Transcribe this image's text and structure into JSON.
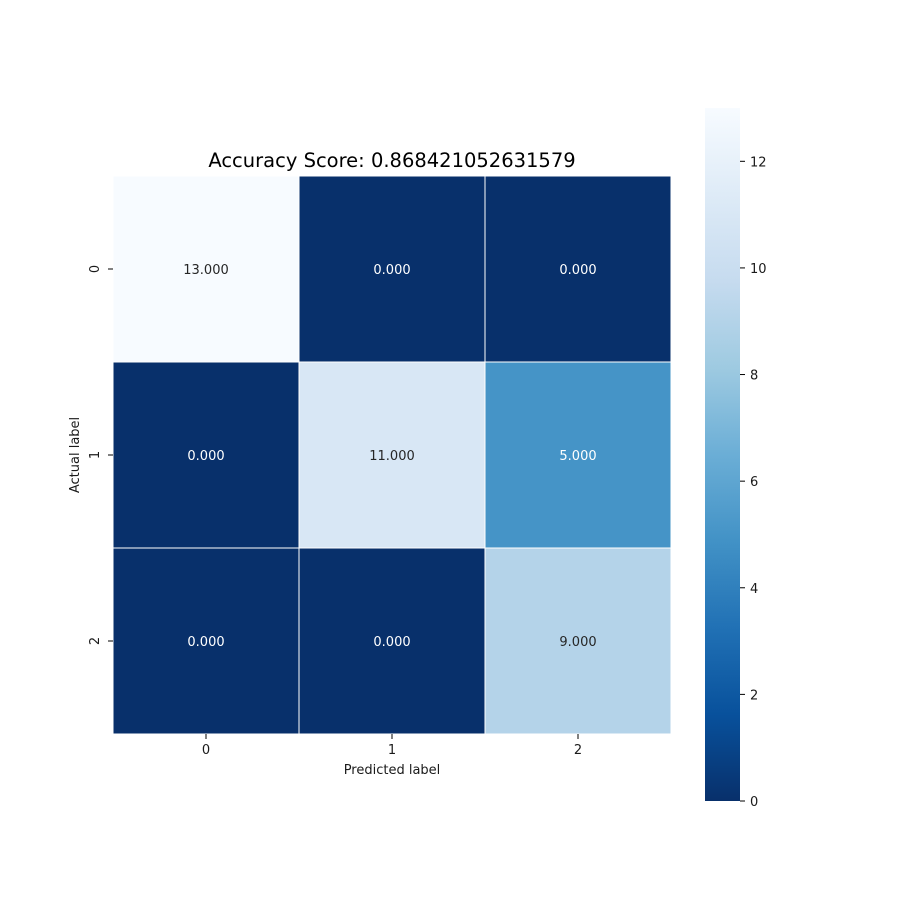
{
  "chart_data": {
    "type": "heatmap",
    "title": "Accuracy Score: 0.868421052631579",
    "xlabel": "Predicted label",
    "ylabel": "Actual label",
    "x_categories": [
      "0",
      "1",
      "2"
    ],
    "y_categories": [
      "0",
      "1",
      "2"
    ],
    "values": [
      [
        13,
        0,
        0
      ],
      [
        0,
        11,
        5
      ],
      [
        0,
        0,
        9
      ]
    ],
    "cell_labels": [
      [
        "13.000",
        "0.000",
        "0.000"
      ],
      [
        "0.000",
        "11.000",
        "5.000"
      ],
      [
        "0.000",
        "0.000",
        "9.000"
      ]
    ],
    "colormap": "Blues_r",
    "colormap_stops": [
      "#08306b",
      "#08519c",
      "#2171b5",
      "#4292c6",
      "#6baed6",
      "#9ecae1",
      "#c6dbef",
      "#deebf7",
      "#f7fbff"
    ],
    "vmin": 0,
    "vmax": 13,
    "colorbar_ticks": [
      0,
      2,
      4,
      6,
      8,
      10,
      12
    ],
    "colorbar_tick_labels": [
      "0",
      "2",
      "4",
      "6",
      "8",
      "10",
      "12"
    ],
    "grid": false
  }
}
